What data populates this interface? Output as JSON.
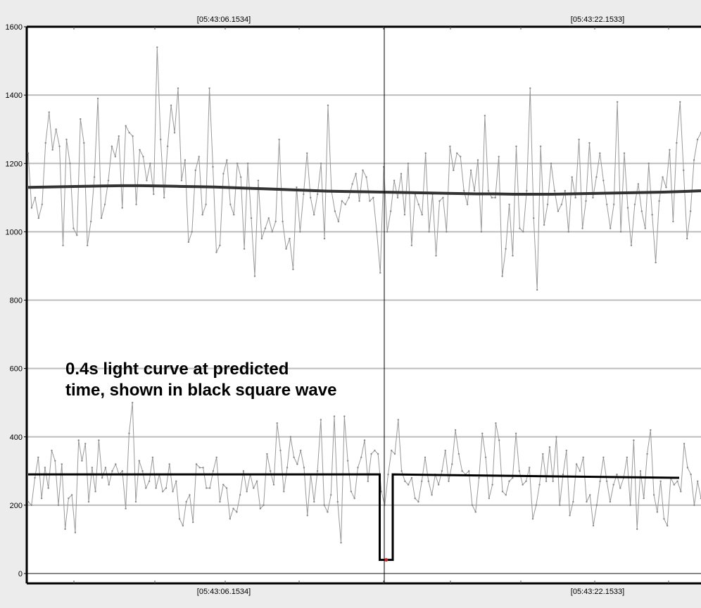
{
  "chart_data": {
    "type": "line",
    "title": "",
    "xlabel": "",
    "ylabel": "",
    "ylim": [
      0,
      1600
    ],
    "yticks": [
      0,
      200,
      400,
      600,
      800,
      1000,
      1200,
      1400,
      1600
    ],
    "ytick_labels": [
      "0",
      "200",
      "400",
      "600",
      "800",
      "1000",
      "1200",
      "1400",
      "1600"
    ],
    "grid": true,
    "time_labels_top": [
      "[05:43:06.1534]",
      "[05:43:22.1533]"
    ],
    "time_labels_bottom": [
      "[05:43:06.1534]",
      "[05:43:22.1533]"
    ],
    "annotation": "0.4s light curve at predicted time, shown in black square wave",
    "annotation_lines": [
      "0.4s light curve at predicted",
      "time, shown in black square wave"
    ],
    "series": [
      {
        "color": "#999999",
        "values": [
          1230,
          1070,
          1100,
          1040,
          1080,
          1260,
          1350,
          1240,
          1300,
          1250,
          960,
          1270,
          1200,
          1010,
          990,
          1330,
          1260,
          960,
          1030,
          1160,
          1390,
          1040,
          1080,
          1150,
          1250,
          1220,
          1280,
          1070,
          1310,
          1290,
          1280,
          1080,
          1240,
          1220,
          1150,
          1200,
          1110,
          1540,
          1270,
          1100,
          1250,
          1370,
          1290,
          1420,
          1150,
          1210,
          970,
          1000,
          1180,
          1220,
          1050,
          1080,
          1420,
          1190,
          940,
          960,
          1170,
          1210,
          1080,
          1050,
          1200,
          1160,
          950,
          1200,
          1040,
          870,
          1150,
          980,
          1010,
          1040,
          1000,
          1030,
          1270,
          1030,
          950,
          980,
          890,
          1130,
          1000,
          1110,
          1230,
          1100,
          1050,
          1110,
          1200,
          980,
          1370,
          1120,
          1060,
          1030,
          1090,
          1080,
          1100,
          1140,
          1170,
          1090,
          1180,
          1160,
          1090,
          1100,
          1000,
          880,
          1190,
          1000,
          1060,
          1150,
          1100,
          1170,
          1050,
          1200,
          960,
          1110,
          1080,
          1050,
          1230,
          1000,
          1110,
          930,
          1090,
          1100,
          1000,
          1250,
          1180,
          1230,
          1220,
          1120,
          1080,
          1180,
          1120,
          1210,
          1000,
          1340,
          1120,
          1100,
          1100,
          1220,
          870,
          950,
          1080,
          930,
          1250,
          1010,
          1000,
          1120,
          1420,
          1040,
          830,
          1250,
          1020,
          1080,
          1200,
          1120,
          1060,
          1080,
          1120,
          1000,
          1160,
          1100,
          1270,
          1010,
          1090,
          1260,
          1100,
          1160,
          1230,
          1150,
          1080,
          1010,
          1080,
          1380,
          1000,
          1230,
          1070,
          960,
          1080,
          1140,
          1060,
          1010,
          1200,
          1050,
          910,
          1090,
          1160,
          1130,
          1240,
          1030,
          1260,
          1380,
          1180,
          980,
          1060,
          1210,
          1270,
          1290
        ],
        "name": ""
      },
      {
        "color": "#333333",
        "values": [
          1130,
          1131,
          1132,
          1133,
          1134,
          1135,
          1135,
          1134,
          1133,
          1132,
          1131,
          1129,
          1127,
          1125,
          1123,
          1121,
          1119,
          1118,
          1117,
          1116,
          1115,
          1114,
          1113,
          1112,
          1111,
          1111,
          1110,
          1110,
          1110,
          1111,
          1112,
          1113,
          1114,
          1115,
          1116,
          1118,
          1120
        ],
        "name": ""
      },
      {
        "color": "#999999",
        "values": [
          210,
          200,
          280,
          340,
          220,
          310,
          250,
          360,
          330,
          200,
          320,
          130,
          220,
          230,
          120,
          390,
          330,
          380,
          210,
          310,
          240,
          390,
          280,
          310,
          260,
          300,
          320,
          290,
          300,
          190,
          410,
          500,
          210,
          330,
          300,
          250,
          270,
          340,
          250,
          290,
          240,
          250,
          320,
          240,
          270,
          160,
          140,
          210,
          230,
          150,
          320,
          310,
          310,
          250,
          250,
          300,
          340,
          210,
          260,
          250,
          160,
          190,
          180,
          230,
          300,
          240,
          290,
          250,
          270,
          190,
          200,
          350,
          300,
          260,
          440,
          360,
          240,
          310,
          400,
          340,
          320,
          360,
          310,
          170,
          290,
          210,
          300,
          450,
          200,
          180,
          230,
          460,
          210,
          90,
          460,
          330,
          240,
          220,
          310,
          340,
          390,
          270,
          350,
          360,
          350,
          240,
          200,
          290,
          360,
          350,
          450,
          300,
          270,
          260,
          280,
          220,
          210,
          270,
          340,
          270,
          230,
          290,
          260,
          300,
          360,
          270,
          320,
          420,
          350,
          300,
          290,
          300,
          200,
          180,
          280,
          410,
          340,
          220,
          260,
          440,
          390,
          240,
          230,
          270,
          280,
          410,
          300,
          260,
          270,
          310,
          160,
          200,
          260,
          350,
          270,
          370,
          270,
          400,
          200,
          290,
          360,
          170,
          210,
          320,
          300,
          340,
          210,
          230,
          140,
          200,
          270,
          340,
          270,
          210,
          260,
          290,
          250,
          280,
          340,
          200,
          390,
          130,
          300,
          220,
          350,
          420,
          230,
          180,
          270,
          160,
          140,
          280,
          260,
          270,
          240,
          380,
          310,
          290,
          200,
          270,
          220
        ]
      },
      {
        "color": "#000000",
        "type": "square-wave",
        "x": [
          0,
          0.54,
          0.54,
          0.56,
          0.56,
          1.0
        ],
        "values": [
          290,
          290,
          40,
          40,
          290,
          280
        ]
      }
    ]
  }
}
